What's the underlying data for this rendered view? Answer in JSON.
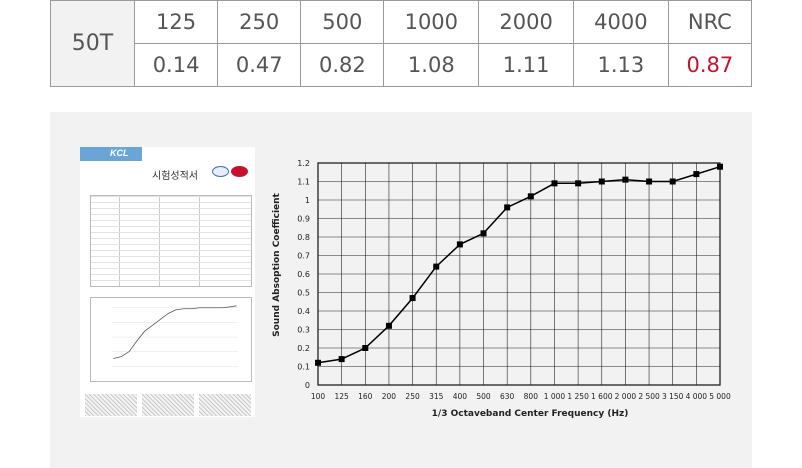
{
  "spec_table": {
    "model": "50T",
    "frequencies": [
      "125",
      "250",
      "500",
      "1000",
      "2000",
      "4000"
    ],
    "coefficients": [
      "0.14",
      "0.47",
      "0.82",
      "1.08",
      "1.11",
      "1.13"
    ],
    "nrc_label": "NRC",
    "nrc_value": "0.87",
    "nrc_color": "#c8102e"
  },
  "report": {
    "logo_text": "KCL",
    "title": "시험성적서"
  },
  "chart_data": {
    "type": "line",
    "xlabel": "1/3 Octaveband Center Frequency (Hz)",
    "ylabel": "Sound Absoption Coefficient",
    "x": [
      "100",
      "125",
      "160",
      "200",
      "250",
      "315",
      "400",
      "500",
      "630",
      "800",
      "1 000",
      "1 250",
      "1 600",
      "2 000",
      "2 500",
      "3 150",
      "4 000",
      "5 000"
    ],
    "values": [
      0.12,
      0.14,
      0.2,
      0.32,
      0.47,
      0.64,
      0.76,
      0.82,
      0.96,
      1.02,
      1.09,
      1.09,
      1.1,
      1.11,
      1.1,
      1.1,
      1.14,
      1.18
    ],
    "y_ticks": [
      "0",
      "0.1",
      "0.2",
      "0.3",
      "0.4",
      "0.5",
      "0.6",
      "0.7",
      "0.8",
      "0.9",
      "1",
      "1.1",
      "1.2"
    ],
    "ylim": [
      0,
      1.2
    ],
    "grid": true,
    "line_color": "#000000"
  }
}
